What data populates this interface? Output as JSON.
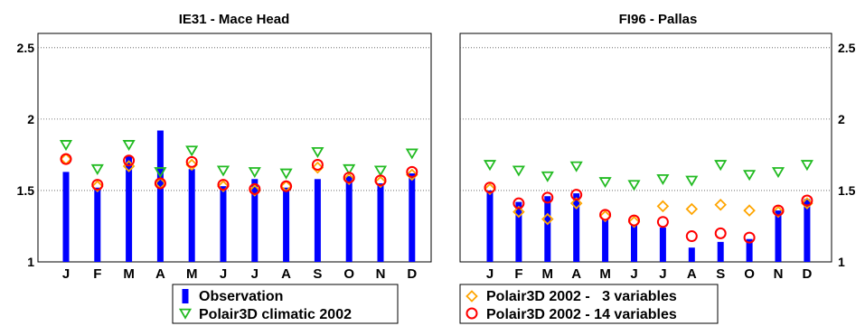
{
  "chart_data": [
    {
      "type": "bar",
      "title": "IE31 - Mace Head",
      "categories": [
        "J",
        "F",
        "M",
        "A",
        "M",
        "J",
        "J",
        "A",
        "S",
        "O",
        "N",
        "D"
      ],
      "ylim": [
        1,
        2.6
      ],
      "yticks": [
        "1",
        "1.5",
        "2",
        "2.5"
      ],
      "ytick_values": [
        1,
        1.5,
        2,
        2.5
      ],
      "yaxis_side": "left",
      "grid": true,
      "series": [
        {
          "name": "Observation",
          "kind": "bar",
          "color": "#0000ff",
          "values": [
            1.63,
            1.52,
            1.74,
            1.92,
            1.65,
            1.53,
            1.58,
            1.52,
            1.58,
            1.6,
            1.55,
            1.62
          ]
        },
        {
          "name": "Polair3D climatic 2002",
          "kind": "triangle-down",
          "color": "#22bb22",
          "values": [
            1.82,
            1.65,
            1.82,
            1.63,
            1.78,
            1.64,
            1.63,
            1.62,
            1.77,
            1.65,
            1.64,
            1.76
          ]
        },
        {
          "name": "Polair3D 2002 - 3 variables",
          "kind": "diamond",
          "color": "#ffa500",
          "values": [
            1.72,
            1.53,
            1.67,
            1.55,
            1.68,
            1.53,
            1.5,
            1.53,
            1.66,
            1.58,
            1.56,
            1.61
          ]
        },
        {
          "name": "Polair3D 2002 - 14 variables",
          "kind": "circle",
          "color": "#ff0000",
          "values": [
            1.72,
            1.54,
            1.71,
            1.55,
            1.7,
            1.54,
            1.51,
            1.53,
            1.68,
            1.59,
            1.57,
            1.63
          ]
        }
      ]
    },
    {
      "type": "bar",
      "title": "FI96 - Pallas",
      "categories": [
        "J",
        "F",
        "M",
        "A",
        "M",
        "J",
        "J",
        "A",
        "S",
        "O",
        "N",
        "D"
      ],
      "ylim": [
        1,
        2.6
      ],
      "yticks": [
        "1",
        "1.5",
        "2",
        "2.5"
      ],
      "ytick_values": [
        1,
        1.5,
        2,
        2.5
      ],
      "yaxis_side": "right",
      "grid": true,
      "series": [
        {
          "name": "Observation",
          "kind": "bar",
          "color": "#0000ff",
          "values": [
            1.5,
            1.42,
            1.46,
            1.48,
            1.3,
            1.26,
            1.24,
            1.1,
            1.14,
            1.16,
            1.36,
            1.44
          ]
        },
        {
          "name": "Polair3D climatic 2002",
          "kind": "triangle-down",
          "color": "#22bb22",
          "values": [
            1.68,
            1.64,
            1.6,
            1.67,
            1.56,
            1.54,
            1.58,
            1.57,
            1.68,
            1.61,
            1.63,
            1.68
          ]
        },
        {
          "name": "Polair3D 2002 - 3 variables",
          "kind": "diamond",
          "color": "#ffa500",
          "values": [
            1.51,
            1.35,
            1.3,
            1.41,
            1.32,
            1.28,
            1.39,
            1.37,
            1.4,
            1.36,
            1.35,
            1.41
          ]
        },
        {
          "name": "Polair3D 2002 - 14 variables",
          "kind": "circle",
          "color": "#ff0000",
          "values": [
            1.52,
            1.41,
            1.45,
            1.47,
            1.33,
            1.29,
            1.28,
            1.18,
            1.2,
            1.17,
            1.36,
            1.43
          ]
        }
      ]
    }
  ],
  "legends": [
    {
      "items": [
        {
          "label": "Observation",
          "kind": "bar",
          "color": "#0000ff"
        },
        {
          "label": "Polair3D climatic 2002",
          "kind": "triangle-down",
          "color": "#22bb22"
        }
      ]
    },
    {
      "items": [
        {
          "label": "Polair3D 2002 -   3 variables",
          "kind": "diamond",
          "color": "#ffa500"
        },
        {
          "label": "Polair3D 2002 - 14 variables",
          "kind": "circle",
          "color": "#ff0000"
        }
      ]
    }
  ]
}
